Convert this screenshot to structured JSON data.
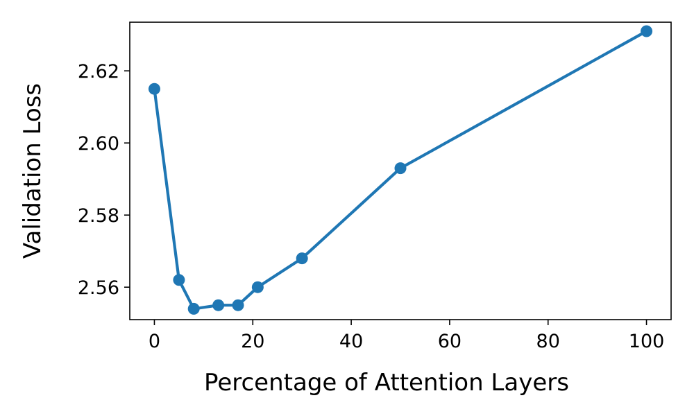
{
  "chart_data": {
    "type": "line",
    "title": "",
    "xlabel": "Percentage of Attention Layers",
    "ylabel": "Validation Loss",
    "xlim": [
      -5,
      105
    ],
    "ylim": [
      2.551,
      2.6335
    ],
    "xticks": [
      0,
      20,
      40,
      60,
      80,
      100
    ],
    "xtick_labels": [
      "0",
      "20",
      "40",
      "60",
      "80",
      "100"
    ],
    "yticks": [
      2.56,
      2.58,
      2.6,
      2.62
    ],
    "ytick_labels": [
      "2.56",
      "2.58",
      "2.60",
      "2.62"
    ],
    "grid": false,
    "legend": "none",
    "series": [
      {
        "color": "#1f77b4",
        "marker": "circle",
        "x": [
          0,
          5,
          8,
          13,
          17,
          21,
          30,
          50,
          100
        ],
        "y": [
          2.615,
          2.562,
          2.554,
          2.555,
          2.555,
          2.56,
          2.568,
          2.593,
          2.631
        ]
      }
    ]
  }
}
